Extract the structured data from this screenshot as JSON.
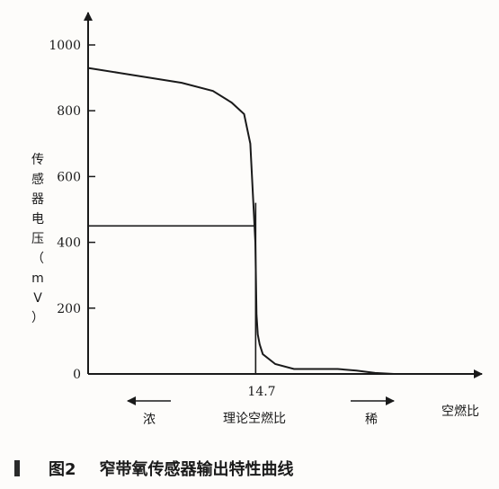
{
  "chart_data": {
    "type": "line",
    "ylabel": "传感器电压（mV）",
    "xlabel": "空燃比",
    "ylim": [
      0,
      1000
    ],
    "y_ticks": [
      "0",
      "200",
      "400",
      "600",
      "800",
      "1000"
    ],
    "x_tick_label": "14.7",
    "x_tick_sublabel": "理论空燃比",
    "rich_label": "浓",
    "lean_label": "稀",
    "reference_voltage_mV": 450,
    "series": [
      {
        "x": [
          12.0,
          12.5,
          13.0,
          13.5,
          14.0,
          14.3,
          14.5,
          14.6,
          14.68,
          14.7,
          14.72,
          14.75,
          14.8,
          15.0,
          15.3,
          15.6,
          16.0,
          16.3,
          16.6,
          16.9
        ],
        "y": [
          930,
          915,
          900,
          885,
          860,
          825,
          790,
          700,
          400,
          180,
          120,
          90,
          60,
          30,
          15,
          15,
          15,
          10,
          3,
          0
        ]
      }
    ]
  },
  "caption": {
    "figure_number": "图2",
    "text": "窄带氧传感器输出特性曲线"
  }
}
